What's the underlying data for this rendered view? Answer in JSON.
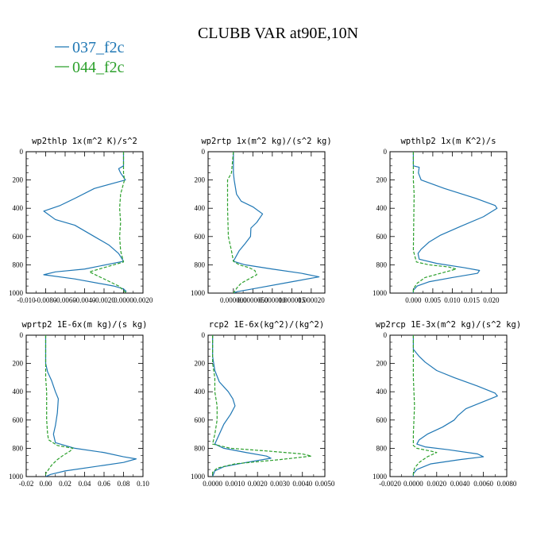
{
  "figure": {
    "title": "CLUBB VAR at90E,10N",
    "legend": [
      {
        "label": "037_f2c",
        "color": "#1f77b4",
        "dash": "solid"
      },
      {
        "label": "044_f2c",
        "color": "#2ca02c",
        "dash": "dashed"
      }
    ]
  },
  "chart_data": [
    {
      "type": "line",
      "title": "wp2thlp   1x(m^2 K)/s^2",
      "xlim": [
        -0.01,
        0.002
      ],
      "ylim": [
        1000,
        0
      ],
      "xticks": [
        -0.01,
        -0.008,
        -0.006,
        -0.004,
        -0.002,
        0.0,
        0.002
      ],
      "xtick_labels": [
        "-0.010",
        "-0.0080",
        "-0.0060",
        "-0.0040",
        "-0.0020",
        "0.0000",
        "0.0020"
      ],
      "yticks": [
        0,
        200,
        400,
        600,
        800,
        1000
      ],
      "series": [
        {
          "name": "037_f2c",
          "points": [
            [
              0.0,
              0
            ],
            [
              0.0,
              100
            ],
            [
              -0.0005,
              120
            ],
            [
              -0.0003,
              150
            ],
            [
              0.0002,
              200
            ],
            [
              -0.003,
              260
            ],
            [
              -0.005,
              330
            ],
            [
              -0.0065,
              380
            ],
            [
              -0.0082,
              420
            ],
            [
              -0.007,
              480
            ],
            [
              -0.005,
              520
            ],
            [
              -0.004,
              560
            ],
            [
              -0.003,
              600
            ],
            [
              -0.0015,
              660
            ],
            [
              -0.0005,
              720
            ],
            [
              0.0,
              775
            ],
            [
              -0.004,
              830
            ],
            [
              -0.007,
              850
            ],
            [
              -0.0082,
              870
            ],
            [
              -0.005,
              900
            ],
            [
              -0.001,
              950
            ],
            [
              0.0,
              970
            ],
            [
              0.0003,
              990
            ]
          ]
        },
        {
          "name": "044_f2c",
          "points": [
            [
              0.0,
              0
            ],
            [
              0.0,
              150
            ],
            [
              0.0001,
              200
            ],
            [
              -0.0003,
              300
            ],
            [
              -0.0004,
              400
            ],
            [
              -0.0003,
              500
            ],
            [
              -0.0004,
              600
            ],
            [
              -0.0003,
              700
            ],
            [
              0.0,
              780
            ],
            [
              -0.002,
              820
            ],
            [
              -0.0035,
              850
            ],
            [
              -0.002,
              900
            ],
            [
              -0.0005,
              950
            ],
            [
              0.0003,
              1000
            ]
          ]
        }
      ]
    },
    {
      "type": "line",
      "title": "wp2rtp   1x(m^2 kg)/(s^2 kg)",
      "xlim": [
        -6.5e-06,
        2.35e-05
      ],
      "ylim": [
        1000,
        0
      ],
      "xticks": [
        0.0,
        5e-06,
        1e-05,
        1.5e-05,
        2e-05
      ],
      "xtick_labels": [
        "0.000000",
        "0.0000050",
        "0.000010",
        "0.000015",
        "0.000020"
      ],
      "yticks": [
        0,
        200,
        400,
        600,
        800,
        1000
      ],
      "series": [
        {
          "name": "037_f2c",
          "points": [
            [
              0.0,
              0
            ],
            [
              0.0,
              150
            ],
            [
              2e-07,
              200
            ],
            [
              8e-07,
              300
            ],
            [
              2e-06,
              350
            ],
            [
              5e-06,
              390
            ],
            [
              7.5e-06,
              440
            ],
            [
              6e-06,
              500
            ],
            [
              4.5e-06,
              540
            ],
            [
              4.4e-06,
              600
            ],
            [
              3e-06,
              650
            ],
            [
              1.5e-06,
              700
            ],
            [
              0.0,
              775
            ],
            [
              3e-06,
              800
            ],
            [
              1e-05,
              830
            ],
            [
              1.75e-05,
              860
            ],
            [
              2.2e-05,
              885
            ],
            [
              1.5e-05,
              920
            ],
            [
              5e-06,
              970
            ],
            [
              1e-06,
              990
            ],
            [
              0.0,
              1000
            ]
          ]
        },
        {
          "name": "044_f2c",
          "points": [
            [
              0.0,
              0
            ],
            [
              -5e-07,
              150
            ],
            [
              -1.5e-06,
              200
            ],
            [
              -1.5e-06,
              400
            ],
            [
              -1.3e-06,
              600
            ],
            [
              -5e-07,
              700
            ],
            [
              0.0,
              775
            ],
            [
              1.5e-06,
              800
            ],
            [
              4e-06,
              820
            ],
            [
              5.5e-06,
              840
            ],
            [
              6e-06,
              870
            ],
            [
              4e-06,
              900
            ],
            [
              2e-06,
              930
            ],
            [
              1e-06,
              960
            ],
            [
              0.0,
              1000
            ]
          ]
        }
      ]
    },
    {
      "type": "line",
      "title": "wpthlp2   1x(m K^2)/s",
      "xlim": [
        -0.006,
        0.024
      ],
      "ylim": [
        1000,
        0
      ],
      "xticks": [
        0.0,
        0.005,
        0.01,
        0.015,
        0.02
      ],
      "xtick_labels": [
        "0.000",
        "0.005",
        "0.010",
        "0.015",
        "0.020"
      ],
      "yticks": [
        0,
        200,
        400,
        600,
        800,
        1000
      ],
      "series": [
        {
          "name": "037_f2c",
          "points": [
            [
              0.0,
              0
            ],
            [
              0.0,
              100
            ],
            [
              0.0015,
              110
            ],
            [
              0.0013,
              150
            ],
            [
              0.002,
              200
            ],
            [
              0.008,
              260
            ],
            [
              0.016,
              330
            ],
            [
              0.021,
              380
            ],
            [
              0.0215,
              400
            ],
            [
              0.018,
              460
            ],
            [
              0.012,
              530
            ],
            [
              0.007,
              590
            ],
            [
              0.004,
              640
            ],
            [
              0.002,
              690
            ],
            [
              0.0012,
              720
            ],
            [
              0.0015,
              760
            ],
            [
              0.006,
              790
            ],
            [
              0.013,
              820
            ],
            [
              0.017,
              840
            ],
            [
              0.0165,
              860
            ],
            [
              0.01,
              890
            ],
            [
              0.004,
              920
            ],
            [
              0.001,
              950
            ],
            [
              0.0,
              980
            ],
            [
              0.0,
              1000
            ]
          ]
        },
        {
          "name": "044_f2c",
          "points": [
            [
              0.0,
              0
            ],
            [
              0.0,
              200
            ],
            [
              0.0002,
              300
            ],
            [
              0.0001,
              500
            ],
            [
              0.0,
              700
            ],
            [
              0.0008,
              780
            ],
            [
              0.004,
              800
            ],
            [
              0.009,
              815
            ],
            [
              0.011,
              830
            ],
            [
              0.007,
              860
            ],
            [
              0.003,
              890
            ],
            [
              0.001,
              930
            ],
            [
              0.0,
              970
            ],
            [
              0.0,
              1000
            ]
          ]
        }
      ]
    },
    {
      "type": "line",
      "title": "wprtp2   1E-6x(m kg)/(s kg)",
      "xlim": [
        -0.02,
        0.1
      ],
      "ylim": [
        1000,
        0
      ],
      "xticks": [
        -0.02,
        0.0,
        0.02,
        0.04,
        0.06,
        0.08,
        0.1
      ],
      "xtick_labels": [
        "-0.02",
        "0.00",
        "0.02",
        "0.04",
        "0.06",
        "0.08",
        "0.10"
      ],
      "yticks": [
        0,
        200,
        400,
        600,
        800,
        1000
      ],
      "series": [
        {
          "name": "037_f2c",
          "points": [
            [
              0.0,
              0
            ],
            [
              0.0,
              200
            ],
            [
              0.002,
              260
            ],
            [
              0.006,
              320
            ],
            [
              0.01,
              400
            ],
            [
              0.013,
              450
            ],
            [
              0.012,
              550
            ],
            [
              0.01,
              640
            ],
            [
              0.008,
              700
            ],
            [
              0.01,
              760
            ],
            [
              0.03,
              800
            ],
            [
              0.06,
              830
            ],
            [
              0.08,
              860
            ],
            [
              0.093,
              875
            ],
            [
              0.08,
              900
            ],
            [
              0.05,
              930
            ],
            [
              0.02,
              960
            ],
            [
              0.005,
              985
            ],
            [
              0.0,
              1000
            ]
          ]
        },
        {
          "name": "044_f2c",
          "points": [
            [
              0.0,
              0
            ],
            [
              0.0,
              300
            ],
            [
              0.001,
              400
            ],
            [
              0.001,
              600
            ],
            [
              0.002,
              700
            ],
            [
              0.003,
              740
            ],
            [
              0.012,
              780
            ],
            [
              0.028,
              800
            ],
            [
              0.025,
              820
            ],
            [
              0.018,
              850
            ],
            [
              0.012,
              880
            ],
            [
              0.006,
              920
            ],
            [
              0.002,
              960
            ],
            [
              0.0,
              980
            ],
            [
              0.0,
              1000
            ]
          ]
        }
      ]
    },
    {
      "type": "line",
      "title": "rcp2   1E-6x(kg^2)/(kg^2)",
      "xlim": [
        -0.0002,
        0.005
      ],
      "ylim": [
        1000,
        0
      ],
      "xticks": [
        0.0,
        0.001,
        0.002,
        0.003,
        0.004,
        0.005
      ],
      "xtick_labels": [
        "0.0000",
        "0.0010",
        "0.0020",
        "0.0030",
        "0.0040",
        "0.0050"
      ],
      "yticks": [
        0,
        200,
        400,
        600,
        800,
        1000
      ],
      "series": [
        {
          "name": "037_f2c",
          "points": [
            [
              0.0,
              0
            ],
            [
              0.0,
              150
            ],
            [
              0.0001,
              250
            ],
            [
              0.0003,
              330
            ],
            [
              0.0007,
              400
            ],
            [
              0.0009,
              450
            ],
            [
              0.001,
              500
            ],
            [
              0.0008,
              560
            ],
            [
              0.0005,
              630
            ],
            [
              0.0003,
              700
            ],
            [
              0.0001,
              770
            ],
            [
              0.0005,
              800
            ],
            [
              0.0015,
              830
            ],
            [
              0.0024,
              855
            ],
            [
              0.0026,
              870
            ],
            [
              0.0015,
              900
            ],
            [
              0.0005,
              930
            ],
            [
              0.0001,
              960
            ],
            [
              0.0,
              1000
            ]
          ]
        },
        {
          "name": "044_f2c",
          "points": [
            [
              0.0,
              0
            ],
            [
              0.0,
              200
            ],
            [
              0.0001,
              300
            ],
            [
              0.0001,
              400
            ],
            [
              0.0002,
              500
            ],
            [
              0.0002,
              600
            ],
            [
              0.0001,
              700
            ],
            [
              0.0,
              770
            ],
            [
              0.0008,
              800
            ],
            [
              0.0025,
              820
            ],
            [
              0.004,
              840
            ],
            [
              0.0044,
              855
            ],
            [
              0.003,
              880
            ],
            [
              0.001,
              910
            ],
            [
              0.0002,
              940
            ],
            [
              0.0,
              970
            ],
            [
              0.0,
              1000
            ]
          ]
        }
      ]
    },
    {
      "type": "line",
      "title": "wp2rcp   1E-3x(m^2 kg)/(s^2 kg)",
      "xlim": [
        -0.002,
        0.008
      ],
      "ylim": [
        1000,
        0
      ],
      "xticks": [
        -0.002,
        0.0,
        0.002,
        0.004,
        0.006,
        0.008
      ],
      "xtick_labels": [
        "-0.0020",
        "0.0000",
        "0.0020",
        "0.0040",
        "0.0060",
        "0.0080"
      ],
      "yticks": [
        0,
        200,
        400,
        600,
        800,
        1000
      ],
      "series": [
        {
          "name": "037_f2c",
          "points": [
            [
              0.0,
              0
            ],
            [
              0.0,
              100
            ],
            [
              0.0005,
              150
            ],
            [
              0.001,
              190
            ],
            [
              0.002,
              250
            ],
            [
              0.0035,
              300
            ],
            [
              0.0055,
              360
            ],
            [
              0.007,
              410
            ],
            [
              0.0072,
              430
            ],
            [
              0.006,
              470
            ],
            [
              0.0045,
              520
            ],
            [
              0.0038,
              570
            ],
            [
              0.0035,
              600
            ],
            [
              0.0025,
              650
            ],
            [
              0.0012,
              700
            ],
            [
              0.0005,
              740
            ],
            [
              0.0003,
              770
            ],
            [
              0.001,
              790
            ],
            [
              0.003,
              810
            ],
            [
              0.0055,
              840
            ],
            [
              0.006,
              860
            ],
            [
              0.004,
              880
            ],
            [
              0.0015,
              910
            ],
            [
              0.0003,
              950
            ],
            [
              0.0,
              980
            ],
            [
              0.0,
              1000
            ]
          ]
        },
        {
          "name": "044_f2c",
          "points": [
            [
              0.0,
              0
            ],
            [
              0.0,
              300
            ],
            [
              0.0001,
              500
            ],
            [
              0.0,
              700
            ],
            [
              0.0,
              780
            ],
            [
              0.0003,
              800
            ],
            [
              0.0015,
              820
            ],
            [
              0.002,
              830
            ],
            [
              0.0012,
              860
            ],
            [
              0.0005,
              900
            ],
            [
              0.0001,
              940
            ],
            [
              0.0,
              980
            ],
            [
              0.0,
              1000
            ]
          ]
        }
      ]
    }
  ]
}
